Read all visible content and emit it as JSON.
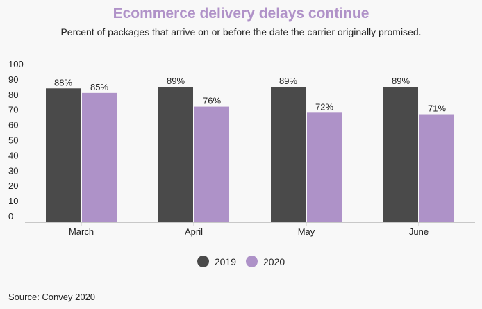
{
  "colors": {
    "s2019": "#4a4a4a",
    "s2020": "#ae92c8",
    "title": "#b092c8"
  },
  "source": "Source:  Convey 2020",
  "chart_data": {
    "type": "bar",
    "title": "Ecommerce  delivery delays continue",
    "subtitle": "Percent of packages that arrive on or before the date the carrier originally promised.",
    "categories": [
      "March",
      "April",
      "May",
      "June"
    ],
    "series": [
      {
        "name": "2019",
        "values": [
          88,
          89,
          89,
          89
        ],
        "labels": [
          "88%",
          "89%",
          "89%",
          "89%"
        ]
      },
      {
        "name": "2020",
        "values": [
          85,
          76,
          72,
          71
        ],
        "labels": [
          "85%",
          "76%",
          "72%",
          "71%"
        ]
      }
    ],
    "yticks": [
      0,
      10,
      20,
      30,
      40,
      50,
      60,
      70,
      80,
      90,
      100
    ],
    "ylim": [
      0,
      100
    ],
    "xlabel": "",
    "ylabel": "",
    "legend": "bottom-center",
    "grid": false
  }
}
